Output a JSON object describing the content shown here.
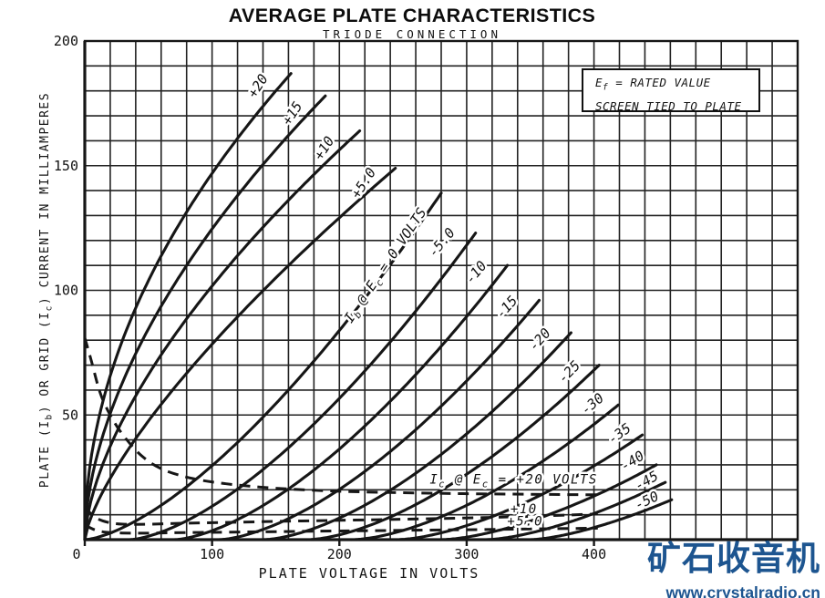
{
  "title": "AVERAGE PLATE CHARACTERISTICS",
  "subtitle": "TRIODE CONNECTION",
  "annotation_box": {
    "eq_pre": "E",
    "eq_sub": "f",
    "eq_post": " = RATED VALUE",
    "line2": "SCREEN TIED TO PLATE"
  },
  "watermark": {
    "cjk": "矿石收音机",
    "url": "www.crystalradio.cn",
    "color": "#1D5590"
  },
  "colors": {
    "ink": "#161616",
    "grid": "#222222"
  },
  "chart_data": {
    "type": "line",
    "title": "AVERAGE PLATE CHARACTERISTICS",
    "subtitle": "TRIODE CONNECTION",
    "xlabel": "PLATE VOLTAGE IN VOLTS",
    "ylabel": "PLATE (Ib) OR GRID (Ic) CURRENT IN MILLIAMPERES",
    "ylabel_parts": {
      "p0": "PLATE (I",
      "s0": "b",
      "p1": ") OR GRID (I",
      "s1": "c",
      "p2": ") CURRENT IN MILLIAMPERES"
    },
    "xlim": [
      0,
      560
    ],
    "ylim": [
      0,
      200
    ],
    "x_ticks": [
      0,
      100,
      200,
      300,
      400
    ],
    "y_ticks": [
      50,
      100,
      150,
      200
    ],
    "origin_tick": "0",
    "x_minor_step": 20,
    "y_minor_step": 10,
    "grid": true,
    "legend_note": "Ef = RATED VALUE / SCREEN TIED TO PLATE",
    "series_solid_family": "Plate current Ib vs plate voltage, grid bias Ec in volts",
    "series_solid": [
      {
        "ec_label": "+20",
        "v_cutoff": 0,
        "v_end": 162,
        "i_end": 187,
        "shape_p": 0.5,
        "label": {
          "text": "+20",
          "v": 139,
          "i": 181,
          "angle": -57
        }
      },
      {
        "ec_label": "+15",
        "v_cutoff": 0,
        "v_end": 189,
        "i_end": 178,
        "shape_p": 0.56,
        "label": {
          "text": "+15",
          "v": 166,
          "i": 170,
          "angle": -57
        }
      },
      {
        "ec_label": "+10",
        "v_cutoff": 0,
        "v_end": 216,
        "i_end": 164,
        "shape_p": 0.62,
        "label": {
          "text": "+10",
          "v": 191,
          "i": 156,
          "angle": -57
        }
      },
      {
        "ec_label": "+5.0",
        "v_cutoff": 0,
        "v_end": 244,
        "i_end": 149,
        "shape_p": 0.72,
        "label": {
          "text": "+5.0",
          "v": 222,
          "i": 142,
          "angle": -57
        }
      },
      {
        "ec_label": "0",
        "v_cutoff": 0,
        "v_end": 280,
        "i_end": 139,
        "shape_p": 1.5,
        "label": {
          "v": 239,
          "i": 109,
          "angle": -56,
          "parts": [
            {
              "t": "I"
            },
            {
              "t": "b",
              "sub": true
            },
            {
              "t": " @ E"
            },
            {
              "t": "c",
              "sub": true
            },
            {
              "t": " = 0 VOLTS"
            }
          ]
        }
      },
      {
        "ec_label": "-5.0",
        "v_cutoff": 35,
        "v_end": 307,
        "i_end": 123,
        "shape_p": 1.55,
        "label": {
          "text": "-5.0",
          "v": 283,
          "i": 118,
          "angle": -50
        }
      },
      {
        "ec_label": "-10",
        "v_cutoff": 70,
        "v_end": 332,
        "i_end": 110,
        "shape_p": 1.58,
        "label": {
          "text": "-10",
          "v": 310,
          "i": 106,
          "angle": -50
        }
      },
      {
        "ec_label": "-15",
        "v_cutoff": 105,
        "v_end": 357,
        "i_end": 96,
        "shape_p": 1.6,
        "label": {
          "text": "-15",
          "v": 334,
          "i": 92,
          "angle": -48
        }
      },
      {
        "ec_label": "-20",
        "v_cutoff": 140,
        "v_end": 382,
        "i_end": 83,
        "shape_p": 1.62,
        "label": {
          "text": "-20",
          "v": 360,
          "i": 79,
          "angle": -48
        }
      },
      {
        "ec_label": "-25",
        "v_cutoff": 175,
        "v_end": 404,
        "i_end": 70,
        "shape_p": 1.62,
        "label": {
          "text": "-25",
          "v": 383,
          "i": 66,
          "angle": -45
        }
      },
      {
        "ec_label": "-30",
        "v_cutoff": 210,
        "v_end": 419,
        "i_end": 54,
        "shape_p": 1.62,
        "label": {
          "text": "-30",
          "v": 401,
          "i": 53,
          "angle": -40
        }
      },
      {
        "ec_label": "-35",
        "v_cutoff": 245,
        "v_end": 438,
        "i_end": 42,
        "shape_p": 1.6,
        "label": {
          "text": "-35",
          "v": 422,
          "i": 41,
          "angle": -36
        }
      },
      {
        "ec_label": "-40",
        "v_cutoff": 280,
        "v_end": 449,
        "i_end": 30,
        "shape_p": 1.58,
        "label": {
          "text": "-40",
          "v": 432,
          "i": 30,
          "angle": -32
        }
      },
      {
        "ec_label": "-45",
        "v_cutoff": 315,
        "v_end": 456,
        "i_end": 23,
        "shape_p": 1.55,
        "label": {
          "text": "-45",
          "v": 443,
          "i": 22,
          "angle": -30
        }
      },
      {
        "ec_label": "-50",
        "v_cutoff": 350,
        "v_end": 461,
        "i_end": 16,
        "shape_p": 1.5,
        "label": {
          "text": "-50",
          "v": 443,
          "i": 14,
          "angle": -26
        }
      }
    ],
    "series_dashed_family": "Grid current Ic vs plate voltage, grid bias Ec in volts",
    "series_dashed": [
      {
        "ec_label": "+20",
        "label": {
          "v": 337,
          "i": 22.5,
          "parts": [
            {
              "t": "I"
            },
            {
              "t": "c",
              "sub": true
            },
            {
              "t": " @ E"
            },
            {
              "t": "c",
              "sub": true
            },
            {
              "t": " = +20 VOLTS"
            }
          ]
        },
        "points": [
          [
            0,
            81
          ],
          [
            5,
            72
          ],
          [
            12,
            59
          ],
          [
            20,
            50
          ],
          [
            30,
            42
          ],
          [
            45,
            33.5
          ],
          [
            62,
            28
          ],
          [
            85,
            24.5
          ],
          [
            110,
            22.5
          ],
          [
            140,
            21
          ],
          [
            180,
            19.8
          ],
          [
            230,
            19
          ],
          [
            290,
            18.5
          ],
          [
            350,
            18.2
          ],
          [
            403,
            18
          ]
        ]
      },
      {
        "ec_label": "+10",
        "label": {
          "text": "+10",
          "v": 345,
          "i": 10.6
        },
        "points": [
          [
            0,
            13
          ],
          [
            8,
            9
          ],
          [
            18,
            7
          ],
          [
            30,
            6.2
          ],
          [
            50,
            6.2
          ],
          [
            80,
            6.6
          ],
          [
            120,
            7
          ],
          [
            170,
            7.5
          ],
          [
            230,
            8
          ],
          [
            290,
            8.6
          ],
          [
            340,
            9.2
          ],
          [
            403,
            10.3
          ]
        ]
      },
      {
        "ec_label": "+5.0",
        "label": {
          "text": "+5.0",
          "v": 346,
          "i": 5.6
        },
        "points": [
          [
            0,
            5.8
          ],
          [
            10,
            3.6
          ],
          [
            22,
            2.8
          ],
          [
            45,
            2.6
          ],
          [
            90,
            2.9
          ],
          [
            150,
            3.2
          ],
          [
            220,
            3.6
          ],
          [
            300,
            4.0
          ],
          [
            403,
            4.6
          ]
        ]
      }
    ]
  }
}
